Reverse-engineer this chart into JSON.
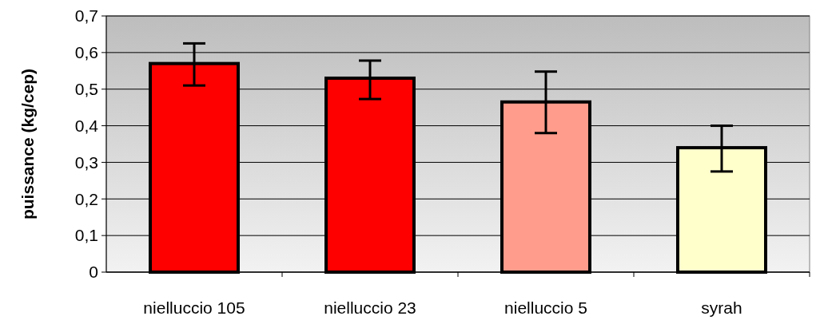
{
  "chart_data": {
    "type": "bar",
    "ylabel": "puissance (kg/cep)",
    "categories": [
      "nielluccio 105",
      "nielluccio 23",
      "nielluccio 5",
      "syrah"
    ],
    "values": [
      0.57,
      0.53,
      0.465,
      0.34
    ],
    "colors": [
      "#ff0000",
      "#ff0000",
      "#ff9c8c",
      "#ffffcc"
    ],
    "errors": [
      [
        0.51,
        0.625
      ],
      [
        0.473,
        0.578
      ],
      [
        0.38,
        0.548
      ],
      [
        0.275,
        0.4
      ]
    ],
    "ylim": [
      0,
      0.7
    ],
    "yticks": [
      {
        "value": 0,
        "label": "0"
      },
      {
        "value": 0.1,
        "label": "0,1"
      },
      {
        "value": 0.2,
        "label": "0,2"
      },
      {
        "value": 0.3,
        "label": "0,3"
      },
      {
        "value": 0.4,
        "label": "0,4"
      },
      {
        "value": 0.5,
        "label": "0,5"
      },
      {
        "value": 0.6,
        "label": "0,6"
      },
      {
        "value": 0.7,
        "label": "0,7"
      }
    ],
    "grid": "y"
  }
}
